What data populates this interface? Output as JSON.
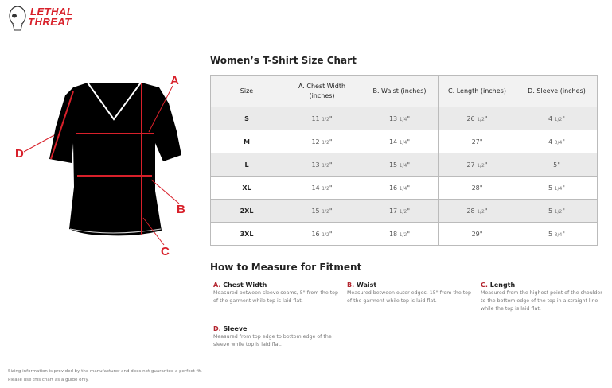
{
  "brand": {
    "logo_text": [
      "LETHAL",
      "THREAT"
    ],
    "color": "#d8202a"
  },
  "diagram": {
    "labels": [
      "A",
      "B",
      "C",
      "D"
    ],
    "accent": "#d8202a"
  },
  "title": "Women’s T-Shirt Size Chart",
  "table": {
    "headers": [
      "Size",
      "A. Chest Width (inches)",
      "B. Waist (inches)",
      "C. Length (inches)",
      "D. Sleeve (inches)"
    ],
    "rows": [
      {
        "size": "S",
        "chest": [
          "11",
          "1/2",
          "\""
        ],
        "waist": [
          "13",
          "1/4",
          "\""
        ],
        "length": [
          "26",
          "1/2",
          "\""
        ],
        "sleeve": [
          "4",
          "1/2",
          "\""
        ]
      },
      {
        "size": "M",
        "chest": [
          "12",
          "1/2",
          "\""
        ],
        "waist": [
          "14",
          "1/4",
          "\""
        ],
        "length": [
          "27",
          "",
          "\""
        ],
        "sleeve": [
          "4",
          "3/4",
          "\""
        ]
      },
      {
        "size": "L",
        "chest": [
          "13",
          "1/2",
          "\""
        ],
        "waist": [
          "15",
          "1/4",
          "\""
        ],
        "length": [
          "27",
          "1/2",
          "\""
        ],
        "sleeve": [
          "5",
          "",
          "\""
        ]
      },
      {
        "size": "XL",
        "chest": [
          "14",
          "1/2",
          "\""
        ],
        "waist": [
          "16",
          "1/4",
          "\""
        ],
        "length": [
          "28",
          "",
          "\""
        ],
        "sleeve": [
          "5",
          "1/4",
          "\""
        ]
      },
      {
        "size": "2XL",
        "chest": [
          "15",
          "1/2",
          "\""
        ],
        "waist": [
          "17",
          "1/2",
          "\""
        ],
        "length": [
          "28",
          "1/2",
          "\""
        ],
        "sleeve": [
          "5",
          "1/2",
          "\""
        ]
      },
      {
        "size": "3XL",
        "chest": [
          "16",
          "1/2",
          "\""
        ],
        "waist": [
          "18",
          "1/2",
          "\""
        ],
        "length": [
          "29",
          "",
          "\""
        ],
        "sleeve": [
          "5",
          "3/4",
          "\""
        ]
      }
    ]
  },
  "howto": {
    "title": "How to Measure for Fitment",
    "items": [
      {
        "letter": "A.",
        "name": "Chest Width",
        "desc": "Measured between sleeve seams, 5\" from the top of the garment while top is laid flat."
      },
      {
        "letter": "B.",
        "name": "Waist",
        "desc": "Measured between outer edges, 15\" from the top of the garment while top is laid flat."
      },
      {
        "letter": "C.",
        "name": "Length",
        "desc": "Measured from the highest point of the shoulder to the bottom edge of the top in a straight line while the top is laid flat."
      },
      {
        "letter": "D.",
        "name": "Sleeve",
        "desc": "Measured from top edge to bottom edge of the sleeve while top is laid flat."
      }
    ]
  },
  "footer": [
    "Sizing information is provided by the manufacturer and does not guarantee a perfect fit.",
    "Please use this chart as a guide only."
  ]
}
